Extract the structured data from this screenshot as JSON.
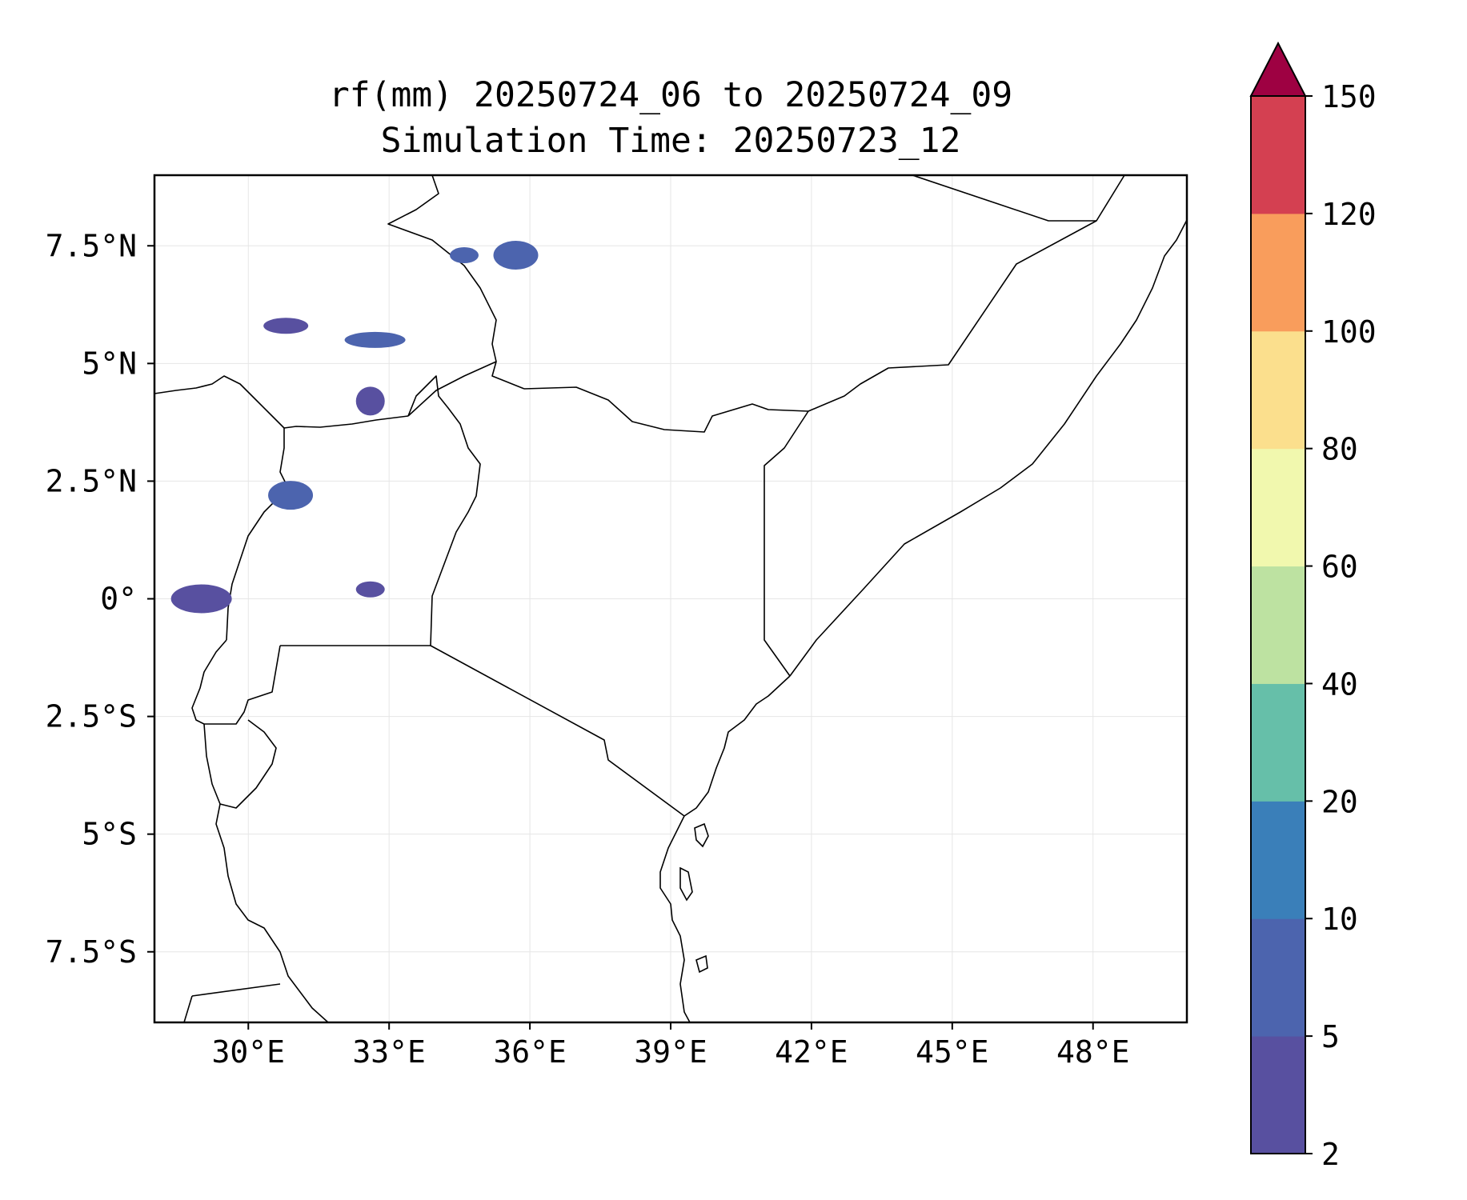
{
  "title": {
    "line1": "rf(mm) 20250724_06 to 20250724_09",
    "line2": "Simulation Time: 20250723_12"
  },
  "map": {
    "lon_range": [
      28.0,
      50.0
    ],
    "lat_range": [
      -9.0,
      9.0
    ],
    "x_ticks": [
      {
        "value": 30,
        "label": "30°E"
      },
      {
        "value": 33,
        "label": "33°E"
      },
      {
        "value": 36,
        "label": "36°E"
      },
      {
        "value": 39,
        "label": "39°E"
      },
      {
        "value": 42,
        "label": "42°E"
      },
      {
        "value": 45,
        "label": "45°E"
      },
      {
        "value": 48,
        "label": "48°E"
      }
    ],
    "y_ticks": [
      {
        "value": 7.5,
        "label": "7.5°N"
      },
      {
        "value": 5,
        "label": "5°N"
      },
      {
        "value": 2.5,
        "label": "2.5°N"
      },
      {
        "value": 0,
        "label": "0°"
      },
      {
        "value": -2.5,
        "label": "2.5°S"
      },
      {
        "value": -5,
        "label": "5°S"
      },
      {
        "value": -7.5,
        "label": "7.5°S"
      }
    ],
    "grid": true
  },
  "colorbar": {
    "levels": [
      "2",
      "5",
      "10",
      "20",
      "40",
      "60",
      "80",
      "100",
      "120",
      "150"
    ],
    "colors": [
      "#5850a0",
      "#4c64ae",
      "#3a7fb9",
      "#66bfa9",
      "#bde2a1",
      "#f1f8ae",
      "#fbdf8d",
      "#f99d5c",
      "#d44051"
    ],
    "extend_color": "#9e0142"
  },
  "rain_cells": [
    {
      "lat": 7.3,
      "lon": 34.6,
      "color": "#4c64ae"
    },
    {
      "lat": 7.3,
      "lon": 35.7,
      "color": "#4c64ae"
    },
    {
      "lat": 5.5,
      "lon": 32.7,
      "color": "#4c64ae"
    },
    {
      "lat": 4.2,
      "lon": 32.6,
      "color": "#5850a0"
    },
    {
      "lat": 5.8,
      "lon": 30.8,
      "color": "#5850a0"
    },
    {
      "lat": 0.0,
      "lon": 29.0,
      "color": "#5850a0"
    },
    {
      "lat": 0.2,
      "lon": 32.6,
      "color": "#5850a0"
    },
    {
      "lat": 2.2,
      "lon": 30.9,
      "color": "#4c64ae"
    }
  ]
}
